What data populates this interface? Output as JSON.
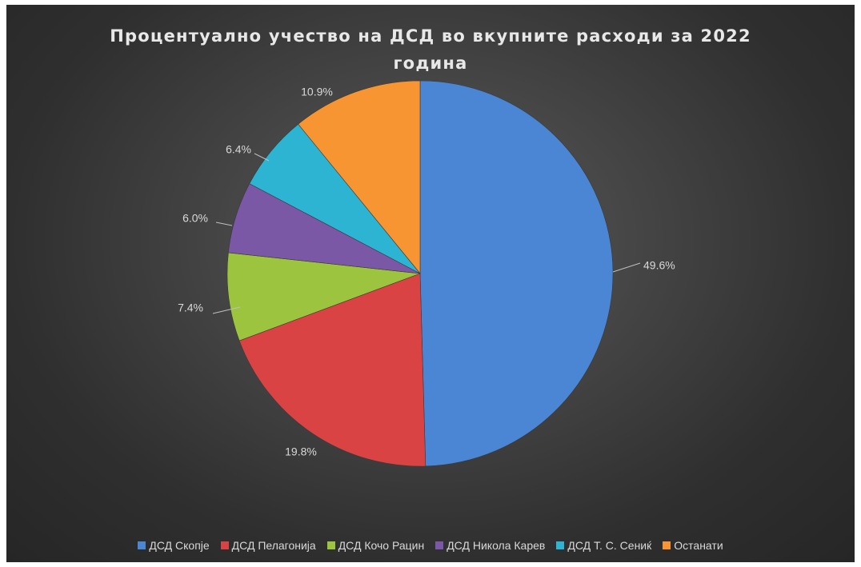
{
  "chart_data": {
    "type": "pie",
    "title_lines": [
      "Процентуално учество на ДСД во вкупните расходи за 2022",
      "година"
    ],
    "categories": [
      "ДСД Скопје",
      "ДСД Пелагонија",
      "ДСД Кочо Рацин",
      "ДСД Никола Карев",
      "ДСД Т. С. Сениќ",
      "Останати"
    ],
    "values": [
      49.6,
      19.8,
      7.4,
      6.0,
      6.4,
      10.9
    ],
    "labels": [
      "49.6%",
      "19.8%",
      "7.4%",
      "6.0%",
      "6.4%",
      "10.9%"
    ],
    "colors": [
      "#4a86d4",
      "#d94343",
      "#9dc43f",
      "#7b58a6",
      "#2eb4d3",
      "#f79532"
    ],
    "legend_position": "bottom"
  }
}
